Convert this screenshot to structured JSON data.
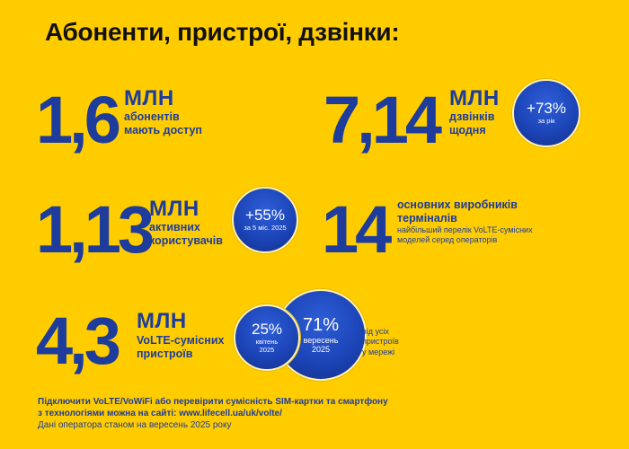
{
  "title": "Абоненти, пристрої, дзвінки:",
  "stats": {
    "access": {
      "value": "1,6",
      "unit": "МЛН",
      "desc1": "абонентів",
      "desc2": "мають доступ"
    },
    "calls": {
      "value": "7,14",
      "unit": "МЛН",
      "desc1": "дзвінків",
      "desc2": "щодня",
      "badge_pct": "+73%",
      "badge_sub": "за рік"
    },
    "active": {
      "value": "1,13",
      "unit": "МЛН",
      "desc1": "активних",
      "desc2": "користувачів",
      "badge_pct": "+55%",
      "badge_sub": "за 5 міс. 2025"
    },
    "vendors": {
      "value": "14",
      "desc1": "основних виробників",
      "desc2": "терміналів",
      "note1": "найбільший перелік VoLTE-сумісних",
      "note2": "моделей серед операторів"
    },
    "devices": {
      "value": "4,3",
      "unit": "МЛН",
      "desc1": "VoLTE-сумісних",
      "desc2": "пристроїв",
      "c1_pct": "25%",
      "c1_sub1": "квітень",
      "c1_sub2": "2025",
      "c2_pct": "71%",
      "c2_sub1": "вересень",
      "c2_sub2": "2025",
      "side1": "від усіх",
      "side2": "пристроїв",
      "side3": "у мережі"
    }
  },
  "footer": {
    "line1": "Підключити VoLTE/VoWiFi або перевірити сумісність SIM-картки та смартфону",
    "line2": "з технологіями можна на сайті: www.lifecell.ua/uk/volte/",
    "line3": "Дані оператора станом на вересень 2025 року"
  }
}
